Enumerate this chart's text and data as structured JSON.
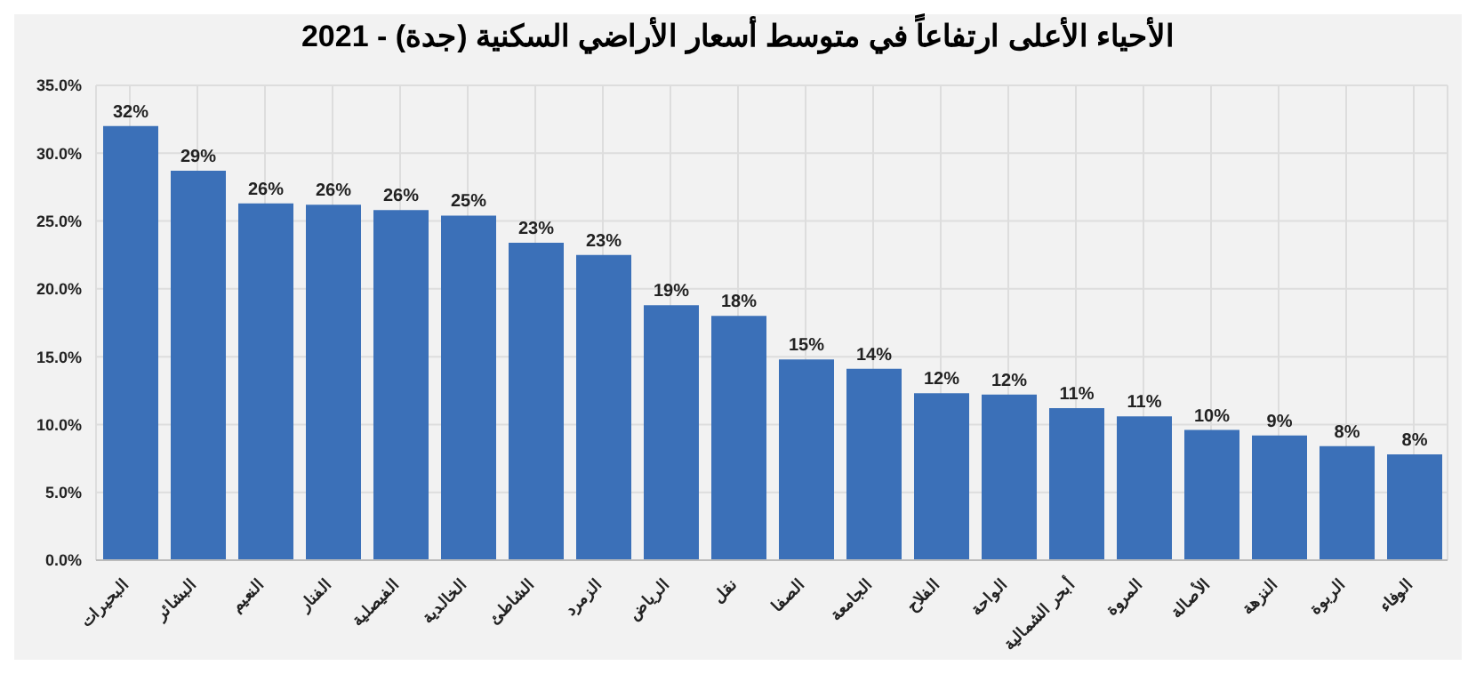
{
  "chart_data": {
    "type": "bar",
    "title": "الأحياء الأعلى ارتفاعاً في متوسط أسعار الأراضي السكنية (جدة) - 2021",
    "categories": [
      "البحيرات",
      "البشائر",
      "النعيم",
      "الفنار",
      "الفيصلية",
      "الخالدية",
      "الشاطئ",
      "الزمرد",
      "الرياض",
      "نقل",
      "الصفا",
      "الجامعة",
      "الفلاح",
      "الواحة",
      "أبحر الشمالية",
      "المروة",
      "الأصالة",
      "النزهة",
      "الربوة",
      "الوفاء"
    ],
    "values": [
      32,
      28.7,
      26.3,
      26.2,
      25.8,
      25.4,
      23.4,
      22.5,
      18.8,
      18,
      14.8,
      14.1,
      12.3,
      12.2,
      11.2,
      10.6,
      9.6,
      9.2,
      8.4,
      7.8
    ],
    "value_labels": [
      "32%",
      "29%",
      "26%",
      "26%",
      "26%",
      "25%",
      "23%",
      "23%",
      "19%",
      "18%",
      "15%",
      "14%",
      "12%",
      "12%",
      "11%",
      "11%",
      "10%",
      "9%",
      "8%",
      "8%"
    ],
    "color": "#3b70b8",
    "ylim": [
      0,
      35
    ],
    "yticks": [
      {
        "value": 0,
        "label": "0.0%"
      },
      {
        "value": 5,
        "label": "5.0%"
      },
      {
        "value": 10,
        "label": "10.0%"
      },
      {
        "value": 15,
        "label": "15.0%"
      },
      {
        "value": 20,
        "label": "20.0%"
      },
      {
        "value": 25,
        "label": "25.0%"
      },
      {
        "value": 30,
        "label": "30.0%"
      },
      {
        "value": 35,
        "label": "35.0%"
      }
    ],
    "grid": true
  }
}
